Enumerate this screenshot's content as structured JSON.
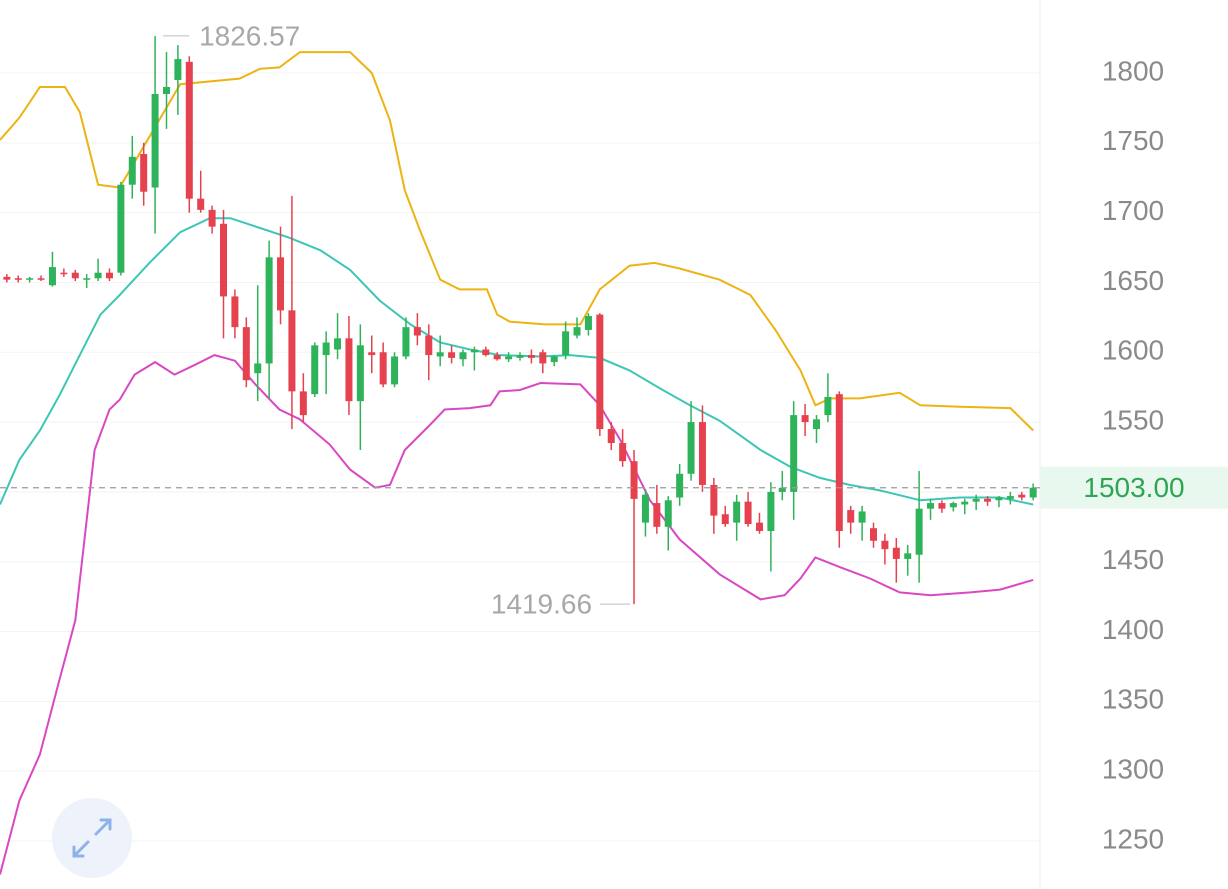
{
  "chart_data": {
    "type": "candlestick",
    "up_color": "#2eb35a",
    "down_color": "#e5414e",
    "xlim": [
      -0.6,
      90.6
    ],
    "ylim": [
      1215.6,
      1852.3
    ],
    "yticks": [
      1250,
      1300,
      1350,
      1400,
      1450,
      1500,
      1550,
      1600,
      1650,
      1700,
      1750,
      1800
    ],
    "grid": true,
    "ohlc": [
      [
        1654,
        1656,
        1650,
        1652
      ],
      [
        1653,
        1655,
        1650,
        1652
      ],
      [
        1652,
        1654,
        1650,
        1653
      ],
      [
        1653,
        1655,
        1651,
        1652
      ],
      [
        1648,
        1672,
        1647,
        1661
      ],
      [
        1657,
        1660,
        1654,
        1656
      ],
      [
        1657,
        1659,
        1651,
        1653
      ],
      [
        1652,
        1656,
        1646,
        1653
      ],
      [
        1653,
        1667,
        1651,
        1657
      ],
      [
        1657,
        1660,
        1651,
        1653
      ],
      [
        1657,
        1722,
        1655,
        1720
      ],
      [
        1720,
        1755,
        1710,
        1740
      ],
      [
        1742,
        1750,
        1705,
        1715
      ],
      [
        1718,
        1826.57,
        1685,
        1785
      ],
      [
        1785,
        1815,
        1760,
        1790
      ],
      [
        1795,
        1820,
        1770,
        1810
      ],
      [
        1808,
        1812,
        1700,
        1710
      ],
      [
        1710,
        1730,
        1700,
        1702
      ],
      [
        1702,
        1705,
        1685,
        1690
      ],
      [
        1692,
        1702,
        1610,
        1640
      ],
      [
        1640,
        1645,
        1610,
        1618
      ],
      [
        1618,
        1625,
        1575,
        1580
      ],
      [
        1585,
        1648,
        1565,
        1592
      ],
      [
        1592,
        1680,
        1567,
        1668
      ],
      [
        1668,
        1690,
        1620,
        1630
      ],
      [
        1630,
        1712,
        1545,
        1572
      ],
      [
        1572,
        1585,
        1550,
        1555
      ],
      [
        1570,
        1607,
        1568,
        1605
      ],
      [
        1598,
        1615,
        1570,
        1607
      ],
      [
        1602,
        1628,
        1595,
        1610
      ],
      [
        1610,
        1626,
        1555,
        1565
      ],
      [
        1565,
        1620,
        1530,
        1605
      ],
      [
        1600,
        1612,
        1585,
        1598
      ],
      [
        1600,
        1607,
        1575,
        1577
      ],
      [
        1577,
        1600,
        1575,
        1597
      ],
      [
        1597,
        1625,
        1595,
        1618
      ],
      [
        1618,
        1628,
        1605,
        1612
      ],
      [
        1612,
        1620,
        1580,
        1598
      ],
      [
        1597,
        1612,
        1590,
        1600
      ],
      [
        1600,
        1605,
        1592,
        1596
      ],
      [
        1595,
        1602,
        1590,
        1600
      ],
      [
        1600,
        1604,
        1587,
        1602
      ],
      [
        1602,
        1604,
        1597,
        1598
      ],
      [
        1598,
        1600,
        1594,
        1595
      ],
      [
        1595,
        1600,
        1593,
        1597
      ],
      [
        1596,
        1600,
        1594,
        1598
      ],
      [
        1598,
        1602,
        1592,
        1596
      ],
      [
        1600,
        1602,
        1585,
        1592
      ],
      [
        1593,
        1598,
        1590,
        1597
      ],
      [
        1598,
        1622,
        1595,
        1615
      ],
      [
        1612,
        1625,
        1610,
        1618
      ],
      [
        1616,
        1628,
        1612,
        1626
      ],
      [
        1627,
        1628,
        1540,
        1545
      ],
      [
        1545,
        1550,
        1530,
        1535
      ],
      [
        1535,
        1545,
        1518,
        1522
      ],
      [
        1522,
        1530,
        1419.66,
        1495
      ],
      [
        1478,
        1502,
        1468,
        1498
      ],
      [
        1492,
        1505,
        1470,
        1475
      ],
      [
        1475,
        1497,
        1458,
        1494
      ],
      [
        1496,
        1520,
        1490,
        1513
      ],
      [
        1513,
        1565,
        1508,
        1550
      ],
      [
        1550,
        1562,
        1500,
        1505
      ],
      [
        1505,
        1510,
        1470,
        1483
      ],
      [
        1484,
        1490,
        1475,
        1477
      ],
      [
        1478,
        1498,
        1465,
        1493
      ],
      [
        1493,
        1500,
        1475,
        1477
      ],
      [
        1478,
        1485,
        1470,
        1472
      ],
      [
        1472,
        1507,
        1443,
        1500
      ],
      [
        1500,
        1515,
        1494,
        1503
      ],
      [
        1500,
        1565,
        1480,
        1555
      ],
      [
        1555,
        1563,
        1540,
        1550
      ],
      [
        1545,
        1555,
        1535,
        1552
      ],
      [
        1555,
        1585,
        1550,
        1568
      ],
      [
        1570,
        1572,
        1460,
        1472
      ],
      [
        1487,
        1490,
        1470,
        1478
      ],
      [
        1478,
        1490,
        1465,
        1486
      ],
      [
        1474,
        1478,
        1460,
        1465
      ],
      [
        1465,
        1470,
        1448,
        1459
      ],
      [
        1460,
        1467,
        1435,
        1452
      ],
      [
        1452,
        1462,
        1440,
        1456
      ],
      [
        1455,
        1515,
        1435,
        1488
      ],
      [
        1488,
        1495,
        1480,
        1492
      ],
      [
        1492,
        1494,
        1485,
        1488
      ],
      [
        1489,
        1493,
        1486,
        1492
      ],
      [
        1491,
        1495,
        1484,
        1493
      ],
      [
        1493,
        1498,
        1487,
        1495
      ],
      [
        1495,
        1497,
        1490,
        1493
      ],
      [
        1494,
        1497,
        1489,
        1496
      ],
      [
        1495,
        1500,
        1491,
        1497
      ],
      [
        1498,
        1500,
        1494,
        1496
      ],
      [
        1496,
        1506,
        1494,
        1503
      ]
    ],
    "series": [
      {
        "color": "#ecb312",
        "x": [
          -0.6,
          1.1,
          2.9,
          5.1,
          6.4,
          8,
          9.9,
          15.2,
          20.4,
          22.2,
          23.9,
          25.7,
          30.1,
          32,
          33.6,
          34.9,
          36.2,
          38,
          39.7,
          42.1,
          43,
          44.1,
          47.2,
          50.3,
          52,
          54.6,
          56.8,
          59,
          62.5,
          65.2,
          67.4,
          69.6,
          70.9,
          72.2,
          74.8,
          78.3,
          80.1,
          83.6,
          88,
          90
        ],
        "values": [
          1752,
          1768,
          1790,
          1790,
          1772,
          1720,
          1718,
          1792,
          1796,
          1803,
          1804,
          1815,
          1815,
          1800,
          1766,
          1716,
          1688,
          1652,
          1645,
          1645,
          1627,
          1622,
          1620,
          1620,
          1645,
          1662,
          1664,
          1660,
          1652,
          1641,
          1616,
          1587,
          1562,
          1567,
          1567,
          1571,
          1562,
          1561,
          1560,
          1544
        ]
      },
      {
        "color": "#3cc7b4",
        "x": [
          -0.6,
          1.1,
          2.9,
          4.6,
          6.4,
          8.2,
          9.9,
          12.5,
          15.2,
          17.8,
          19.6,
          22.2,
          24.8,
          27.5,
          30.1,
          32.7,
          35.4,
          38,
          40.6,
          43.2,
          46.8,
          49.4,
          52,
          54.6,
          57.3,
          59.9,
          62.5,
          66.1,
          68.7,
          71.3,
          73.9,
          76.6,
          80.1,
          83.6,
          87.1,
          90
        ],
        "values": [
          1491,
          1523,
          1544,
          1569,
          1598,
          1627,
          1641,
          1664,
          1686,
          1696,
          1696,
          1689,
          1682,
          1673,
          1659,
          1637,
          1620,
          1607,
          1602,
          1598,
          1597,
          1598,
          1596,
          1587,
          1574,
          1562,
          1551,
          1530,
          1518,
          1510,
          1505,
          1501,
          1494,
          1496,
          1496,
          1491
        ]
      },
      {
        "color": "#d948c2",
        "x": [
          -0.6,
          1.1,
          2.9,
          4.6,
          6,
          7.7,
          9,
          9.9,
          11.2,
          13,
          14.7,
          16.5,
          18.2,
          20,
          21.8,
          23.9,
          25.7,
          28.3,
          30.1,
          32.3,
          33.6,
          34.9,
          37.1,
          38.4,
          40.6,
          42.4,
          43.2,
          45,
          46.8,
          50.3,
          52,
          53.8,
          56.4,
          59,
          62.5,
          66.1,
          68.2,
          69.6,
          70.9,
          73.1,
          75.7,
          78.3,
          81,
          84.5,
          87.1,
          90
        ],
        "values": [
          1226,
          1279,
          1312,
          1365,
          1408,
          1530,
          1559,
          1566,
          1584,
          1593,
          1584,
          1591,
          1598,
          1594,
          1577,
          1559,
          1552,
          1534,
          1516,
          1503,
          1505,
          1530,
          1548,
          1559,
          1560,
          1562,
          1572,
          1573,
          1578,
          1577,
          1562,
          1537,
          1494,
          1466,
          1441,
          1423,
          1426,
          1438,
          1453,
          1446,
          1438,
          1428,
          1426,
          1428,
          1430,
          1437
        ]
      }
    ],
    "last_price": {
      "value": 1503,
      "label": "1503.00"
    }
  }
}
